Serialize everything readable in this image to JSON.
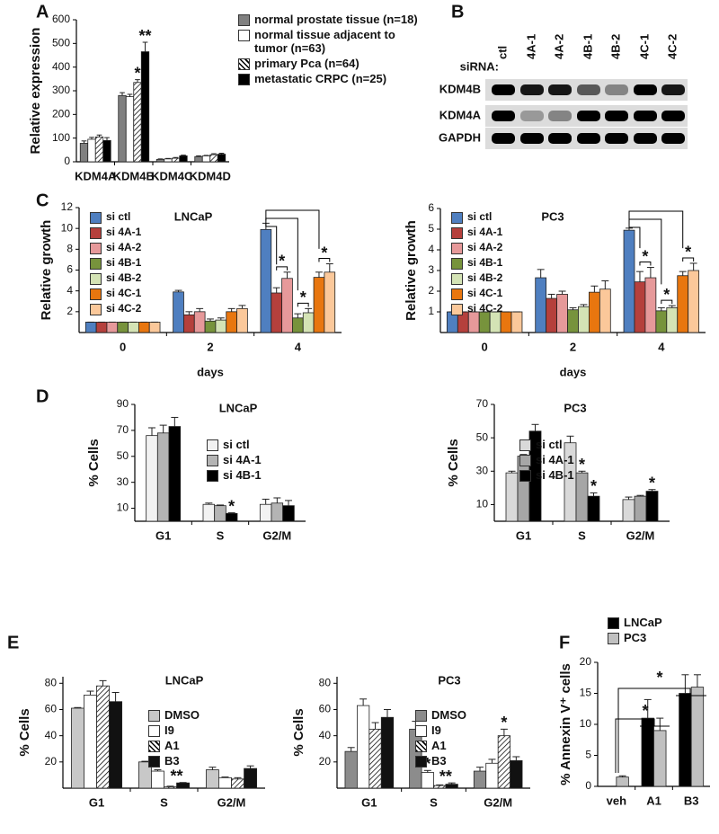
{
  "panel_labels": [
    "A",
    "B",
    "C",
    "D",
    "E",
    "F"
  ],
  "blot": {
    "lane_title": "siRNA:",
    "lanes": [
      "ctl",
      "4A-1",
      "4A-2",
      "4B-1",
      "4B-2",
      "4C-1",
      "4C-2"
    ],
    "rows": [
      "KDM4B",
      "KDM4A",
      "GAPDH"
    ]
  },
  "chart_data": [
    {
      "type": "bar",
      "ylabel": "Relative expression",
      "categories": [
        "KDM4A",
        "KDM4B",
        "KDM4C",
        "KDM4D"
      ],
      "ylim": [
        0,
        600
      ],
      "yticks": [
        0,
        100,
        200,
        300,
        400,
        500,
        600
      ],
      "series": [
        {
          "name": "normal prostate tissue (n=18)",
          "color": "#808080",
          "values": [
            78,
            280,
            10,
            22
          ],
          "errors": [
            10,
            12,
            2,
            3
          ]
        },
        {
          "name": "normal tissue adjacent to tumor (n=63)",
          "color": "#ffffff",
          "values": [
            95,
            275,
            12,
            25
          ],
          "errors": [
            8,
            10,
            2,
            2
          ]
        },
        {
          "name": "primary Pca (n=64)",
          "color": "#000000",
          "pattern": "hatch",
          "values": [
            105,
            335,
            15,
            30
          ],
          "errors": [
            8,
            12,
            3,
            4
          ]
        },
        {
          "name": "metastatic CRPC (n=25)",
          "color": "#000000",
          "values": [
            90,
            465,
            25,
            32
          ],
          "errors": [
            12,
            40,
            3,
            4
          ]
        }
      ],
      "annotations": [
        "*",
        "**"
      ]
    },
    {
      "type": "bar",
      "title": "LNCaP",
      "xlabel": "days",
      "ylabel": "Relative growth",
      "categories": [
        "0",
        "2",
        "4"
      ],
      "ylim": [
        0,
        12
      ],
      "yticks": [
        2,
        4,
        6,
        8,
        10,
        12
      ],
      "series": [
        {
          "name": "si ctl",
          "color": "#4f7fc0",
          "values": [
            1,
            3.9,
            9.9
          ],
          "errors": [
            0,
            0.15,
            0.6
          ]
        },
        {
          "name": "si 4A-1",
          "color": "#b5403c",
          "values": [
            1,
            1.7,
            3.8
          ],
          "errors": [
            0,
            0.3,
            0.5
          ]
        },
        {
          "name": "si 4A-2",
          "color": "#e6999a",
          "values": [
            1,
            2.0,
            5.2
          ],
          "errors": [
            0,
            0.3,
            0.6
          ]
        },
        {
          "name": "si 4B-1",
          "color": "#77933c",
          "values": [
            1,
            1.1,
            1.4
          ],
          "errors": [
            0,
            0.2,
            0.4
          ]
        },
        {
          "name": "si 4B-2",
          "color": "#d4e3b5",
          "values": [
            1,
            1.2,
            1.9
          ],
          "errors": [
            0,
            0.2,
            0.4
          ]
        },
        {
          "name": "si 4C-1",
          "color": "#e8760f",
          "values": [
            1,
            2.0,
            5.3
          ],
          "errors": [
            0,
            0.3,
            0.5
          ]
        },
        {
          "name": "si 4C-2",
          "color": "#fbc89a",
          "values": [
            1,
            2.3,
            5.8
          ],
          "errors": [
            0,
            0.3,
            0.8
          ]
        }
      ],
      "annotations": [
        "*",
        "*",
        "*"
      ]
    },
    {
      "type": "bar",
      "title": "PC3",
      "xlabel": "days",
      "ylabel": "Relative growth",
      "categories": [
        "0",
        "2",
        "4"
      ],
      "ylim": [
        0,
        6
      ],
      "yticks": [
        1,
        2,
        3,
        4,
        5,
        6
      ],
      "series": [
        {
          "name": "si ctl",
          "color": "#4f7fc0",
          "values": [
            1,
            2.65,
            4.95
          ],
          "errors": [
            0,
            0.4,
            0.1
          ]
        },
        {
          "name": "si 4A-1",
          "color": "#b5403c",
          "values": [
            1,
            1.65,
            2.45
          ],
          "errors": [
            0,
            0.2,
            0.5
          ]
        },
        {
          "name": "si 4A-2",
          "color": "#e6999a",
          "values": [
            1,
            1.85,
            2.65
          ],
          "errors": [
            0,
            0.15,
            0.5
          ]
        },
        {
          "name": "si 4B-1",
          "color": "#77933c",
          "values": [
            1,
            1.1,
            1.05
          ],
          "errors": [
            0,
            0.1,
            0.15
          ]
        },
        {
          "name": "si 4B-2",
          "color": "#d4e3b5",
          "values": [
            1,
            1.25,
            1.2
          ],
          "errors": [
            0,
            0.1,
            0.1
          ]
        },
        {
          "name": "si 4C-1",
          "color": "#e8760f",
          "values": [
            1,
            1.95,
            2.75
          ],
          "errors": [
            0,
            0.3,
            0.2
          ]
        },
        {
          "name": "si 4C-2",
          "color": "#fbc89a",
          "values": [
            1,
            2.1,
            3.0
          ],
          "errors": [
            0,
            0.4,
            0.35
          ]
        }
      ],
      "annotations": [
        "*",
        "*",
        "*"
      ]
    },
    {
      "type": "bar",
      "title": "LNCaP",
      "ylabel": "% Cells",
      "categories": [
        "G1",
        "S",
        "G2/M"
      ],
      "ylim": [
        0,
        90
      ],
      "yticks": [
        10,
        30,
        50,
        70,
        90
      ],
      "series": [
        {
          "name": "si ctl",
          "color": "#f2f2f2",
          "values": [
            66,
            13,
            13
          ],
          "errors": [
            6,
            1,
            4
          ]
        },
        {
          "name": "si 4A-1",
          "color": "#b4b4b4",
          "values": [
            68,
            12,
            14
          ],
          "errors": [
            6,
            0.5,
            4
          ]
        },
        {
          "name": "si 4B-1",
          "color": "#000000",
          "values": [
            73,
            6,
            12
          ],
          "errors": [
            7,
            0.5,
            4
          ]
        }
      ],
      "annotations": [
        "*"
      ]
    },
    {
      "type": "bar",
      "title": "PC3",
      "ylabel": "% Cells",
      "categories": [
        "G1",
        "S",
        "G2/M"
      ],
      "ylim": [
        0,
        70
      ],
      "yticks": [
        10,
        30,
        50,
        70
      ],
      "series": [
        {
          "name": "si ctl",
          "color": "#d9d9d9",
          "values": [
            29,
            47,
            13
          ],
          "errors": [
            1,
            4,
            1.5
          ]
        },
        {
          "name": "si 4A-1",
          "color": "#a6a6a6",
          "values": [
            39,
            29,
            15
          ],
          "errors": [
            1,
            1,
            0.5
          ]
        },
        {
          "name": "si 4B-1",
          "color": "#000000",
          "values": [
            54,
            15,
            18
          ],
          "errors": [
            4,
            2,
            1
          ]
        }
      ],
      "annotations": [
        "*",
        "*",
        "*"
      ]
    },
    {
      "type": "bar",
      "title": "LNCaP",
      "ylabel": "% Cells",
      "categories": [
        "G1",
        "S",
        "G2/M"
      ],
      "ylim": [
        0,
        85
      ],
      "yticks": [
        20,
        40,
        60,
        80
      ],
      "series": [
        {
          "name": "DMSO",
          "color": "#c8c8c8",
          "values": [
            61,
            20,
            14
          ],
          "errors": [
            0.5,
            0.5,
            2
          ]
        },
        {
          "name": "I9",
          "color": "#ffffff",
          "values": [
            71,
            13,
            8
          ],
          "errors": [
            3,
            1,
            0.5
          ]
        },
        {
          "name": "A1",
          "color": "#000000",
          "pattern": "hatch",
          "values": [
            78,
            1,
            7
          ],
          "errors": [
            4,
            0.5,
            1
          ]
        },
        {
          "name": "B3",
          "color": "#111111",
          "values": [
            66,
            4,
            15
          ],
          "errors": [
            7,
            0.3,
            2
          ]
        }
      ],
      "annotations": [
        "**"
      ]
    },
    {
      "type": "bar",
      "title": "PC3",
      "ylabel": "% Cells",
      "categories": [
        "G1",
        "S",
        "G2/M"
      ],
      "ylim": [
        0,
        85
      ],
      "yticks": [
        20,
        40,
        60,
        80
      ],
      "series": [
        {
          "name": "DMSO",
          "color": "#8c8c8c",
          "values": [
            28,
            45,
            13
          ],
          "errors": [
            3,
            6,
            3
          ]
        },
        {
          "name": "I9",
          "color": "#ffffff",
          "values": [
            63,
            12,
            19
          ],
          "errors": [
            5,
            1.5,
            3
          ]
        },
        {
          "name": "A1",
          "color": "#000000",
          "pattern": "hatch",
          "values": [
            45,
            2,
            40
          ],
          "errors": [
            5,
            0.5,
            5
          ]
        },
        {
          "name": "B3",
          "color": "#111111",
          "values": [
            54,
            3,
            21
          ],
          "errors": [
            6,
            1,
            3
          ]
        }
      ],
      "annotations": [
        "*",
        "**",
        "*"
      ]
    },
    {
      "type": "bar",
      "ylabel": "% Annexin V⁺ cells",
      "categories": [
        "veh",
        "A1",
        "B3"
      ],
      "ylim": [
        0,
        20
      ],
      "yticks": [
        0,
        5,
        10,
        15,
        20
      ],
      "series": [
        {
          "name": "LNCaP",
          "color": "#000000",
          "values": [
            null,
            11,
            15
          ],
          "errors": [
            null,
            3,
            3
          ]
        },
        {
          "name": "PC3",
          "color": "#c0c0c0",
          "values": [
            1.5,
            9,
            16
          ],
          "errors": [
            0.2,
            2,
            2
          ]
        }
      ],
      "annotations": [
        "*",
        "*"
      ]
    }
  ]
}
